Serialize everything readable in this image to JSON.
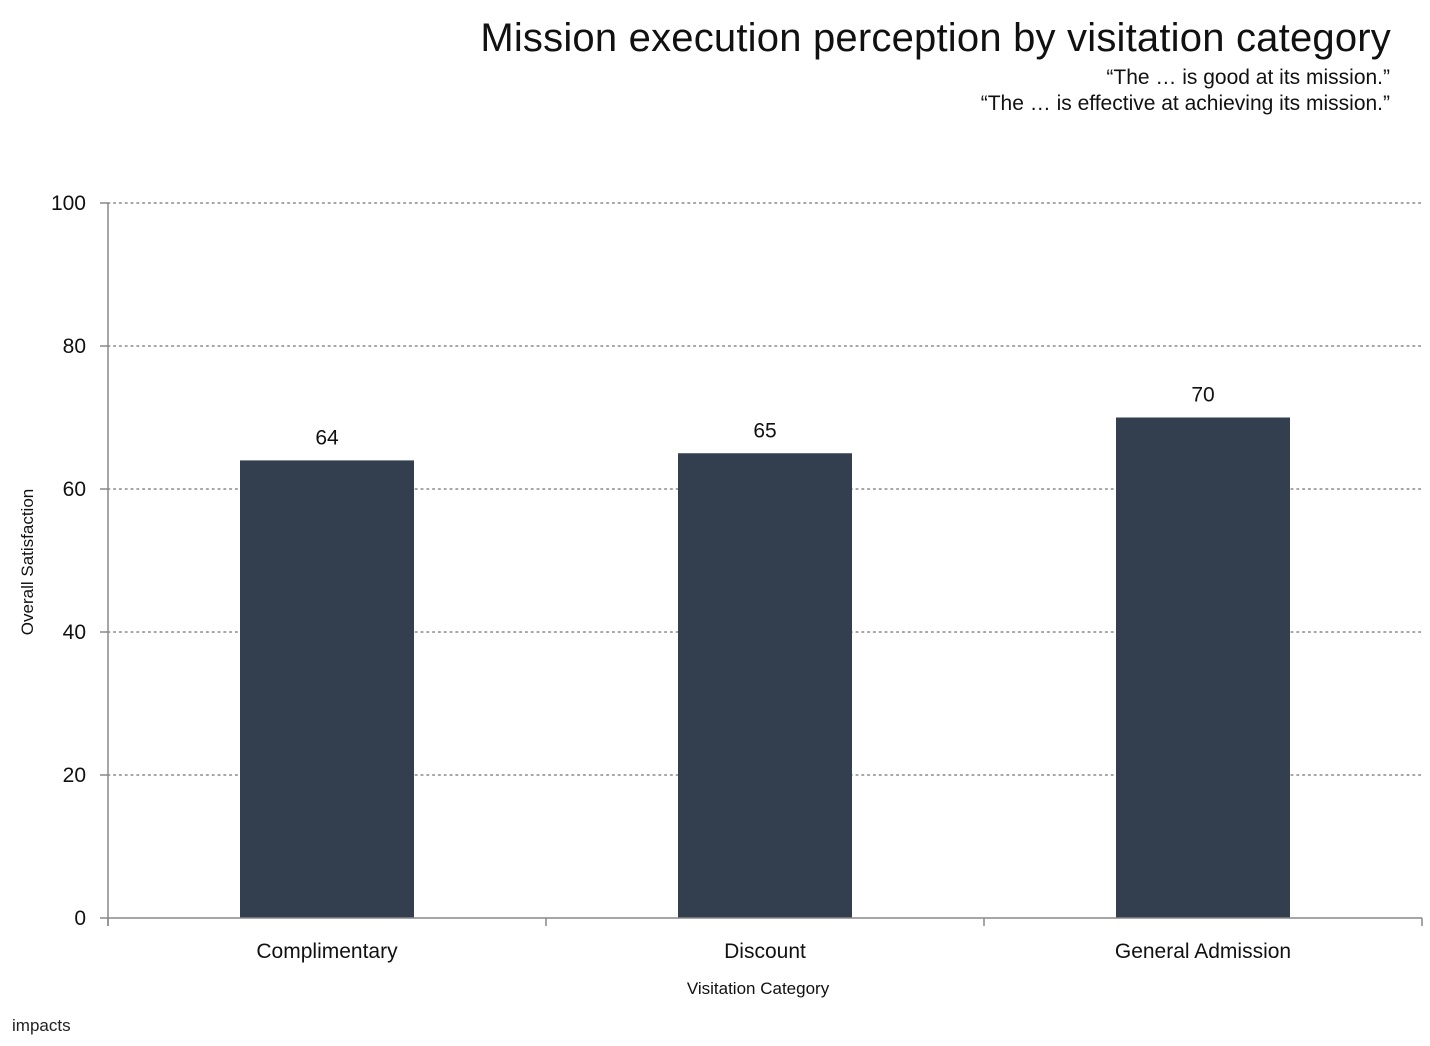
{
  "header": {
    "title": "Mission execution perception by visitation category",
    "subtitle_line1": "“The … is good at its mission.”",
    "subtitle_line2": "“The … is effective at achieving its mission.”"
  },
  "footer": {
    "logo_text": "impacts"
  },
  "colors": {
    "bar": "#333f4f",
    "grid": "#888888",
    "axis": "#888888",
    "text": "#111111"
  },
  "chart_data": {
    "type": "bar",
    "title": "Mission execution perception by visitation category",
    "subtitle": "“The … is good at its mission.” “The … is effective at achieving its mission.”",
    "xlabel": "Visitation Category",
    "ylabel": "Overall Satisfaction",
    "categories": [
      "Complimentary",
      "Discount",
      "General Admission"
    ],
    "values": [
      64,
      65,
      70
    ],
    "data_labels": [
      "64",
      "65",
      "70"
    ],
    "ylim": [
      0,
      100
    ],
    "yticks": [
      0,
      20,
      40,
      60,
      80,
      100
    ],
    "grid": true,
    "grid_style": "dotted",
    "legend": "none"
  }
}
